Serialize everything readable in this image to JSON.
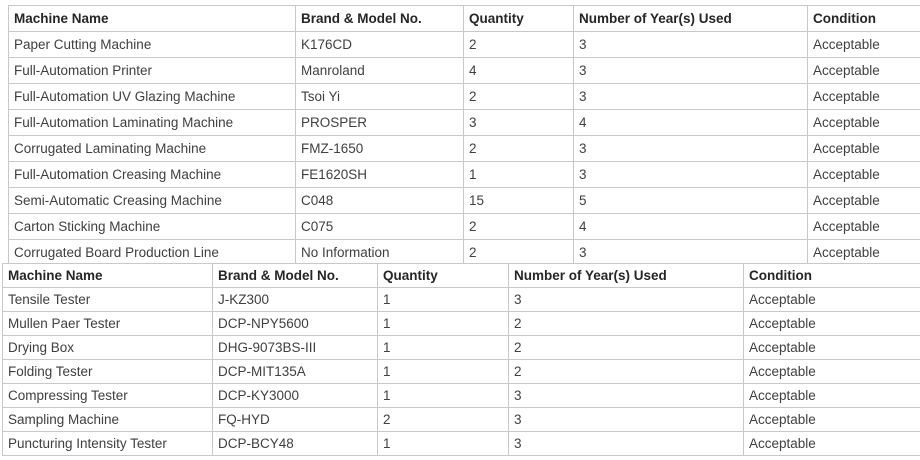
{
  "tables": [
    {
      "name": "production-machines",
      "headers": [
        "Machine Name",
        "Brand & Model No.",
        "Quantity",
        "Number of Year(s) Used",
        "Condition"
      ],
      "rows": [
        [
          "Paper Cutting Machine",
          "K176CD",
          "2",
          "3",
          "Acceptable"
        ],
        [
          "Full-Automation Printer",
          "Manroland",
          "4",
          "3",
          "Acceptable"
        ],
        [
          "Full-Automation UV Glazing Machine",
          "Tsoi Yi",
          "2",
          "3",
          "Acceptable"
        ],
        [
          "Full-Automation Laminating Machine",
          "PROSPER",
          "3",
          "4",
          "Acceptable"
        ],
        [
          "Corrugated Laminating Machine",
          "FMZ-1650",
          "2",
          "3",
          "Acceptable"
        ],
        [
          "Full-Automation Creasing Machine",
          "FE1620SH",
          "1",
          "3",
          "Acceptable"
        ],
        [
          "Semi-Automatic Creasing Machine",
          "C048",
          "15",
          "5",
          "Acceptable"
        ],
        [
          "Carton Sticking Machine",
          "C075",
          "2",
          "4",
          "Acceptable"
        ],
        [
          "Corrugated Board Production Line",
          "No Information",
          "2",
          "3",
          "Acceptable"
        ]
      ]
    },
    {
      "name": "testing-machines",
      "headers": [
        "Machine Name",
        "Brand & Model No.",
        "Quantity",
        "Number of Year(s) Used",
        "Condition"
      ],
      "rows": [
        [
          "Tensile Tester",
          "J-KZ300",
          "1",
          "3",
          "Acceptable"
        ],
        [
          "Mullen Paer Tester",
          "DCP-NPY5600",
          "1",
          "2",
          "Acceptable"
        ],
        [
          "Drying Box",
          "DHG-9073BS-III",
          "1",
          "2",
          "Acceptable"
        ],
        [
          "Folding Tester",
          "DCP-MIT135A",
          "1",
          "2",
          "Acceptable"
        ],
        [
          "Compressing Tester",
          "DCP-KY3000",
          "1",
          "3",
          "Acceptable"
        ],
        [
          "Sampling Machine",
          "FQ-HYD",
          "2",
          "3",
          "Acceptable"
        ],
        [
          "Puncturing Intensity Tester",
          "DCP-BCY48",
          "1",
          "3",
          "Acceptable"
        ]
      ]
    }
  ],
  "colors": {
    "border": "#c8c8c8",
    "header_text": "#262626",
    "cell_text": "#3f3f3f",
    "background": "#ffffff"
  }
}
